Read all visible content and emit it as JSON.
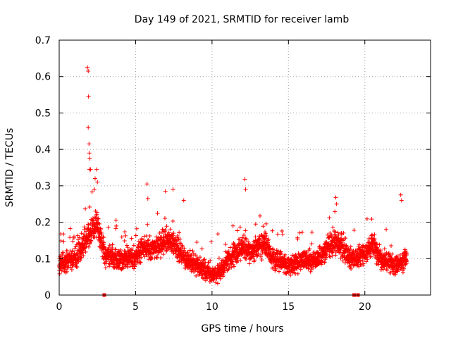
{
  "chart_data": {
    "type": "scatter",
    "title": "Day 149 of 2021, SRMTID for receiver lamb",
    "xlabel": "GPS time / hours",
    "ylabel": "SRMTID / TECUs",
    "xlim": [
      0,
      24.3
    ],
    "ylim": [
      0,
      0.7
    ],
    "xticks": [
      0,
      5,
      10,
      15,
      20
    ],
    "yticks": [
      0,
      0.1,
      0.2,
      0.3,
      0.4,
      0.5,
      0.6,
      0.7
    ],
    "xtick_labels": [
      "0",
      "5",
      "10",
      "15",
      "20"
    ],
    "ytick_labels": [
      "0",
      "0.1",
      "0.2",
      "0.3",
      "0.4",
      "0.5",
      "0.6",
      "0.7"
    ],
    "grid": true,
    "legend": "none",
    "marker": "plus",
    "series_color": "#ff0000",
    "generation": {
      "note": "Dense scatter of several thousand points; summarized by an hourly baseline envelope and peak events read from the figure",
      "x_start": 0.0,
      "x_end": 22.75,
      "x_step": 0.0075,
      "baseline": [
        [
          0.0,
          0.09
        ],
        [
          1.0,
          0.1
        ],
        [
          1.5,
          0.13
        ],
        [
          2.0,
          0.17
        ],
        [
          2.5,
          0.19
        ],
        [
          3.0,
          0.11
        ],
        [
          4.0,
          0.1
        ],
        [
          5.0,
          0.1
        ],
        [
          5.5,
          0.13
        ],
        [
          6.0,
          0.12
        ],
        [
          7.0,
          0.15
        ],
        [
          7.5,
          0.14
        ],
        [
          8.0,
          0.11
        ],
        [
          9.0,
          0.08
        ],
        [
          10.0,
          0.06
        ],
        [
          10.5,
          0.06
        ],
        [
          11.0,
          0.1
        ],
        [
          12.0,
          0.13
        ],
        [
          12.5,
          0.12
        ],
        [
          13.0,
          0.13
        ],
        [
          13.5,
          0.14
        ],
        [
          14.0,
          0.1
        ],
        [
          15.0,
          0.08
        ],
        [
          16.0,
          0.1
        ],
        [
          16.5,
          0.09
        ],
        [
          17.0,
          0.1
        ],
        [
          17.5,
          0.13
        ],
        [
          18.0,
          0.15
        ],
        [
          18.5,
          0.14
        ],
        [
          19.0,
          0.1
        ],
        [
          20.0,
          0.11
        ],
        [
          20.5,
          0.14
        ],
        [
          21.0,
          0.1
        ],
        [
          22.0,
          0.08
        ],
        [
          22.75,
          0.1
        ]
      ],
      "spread": 0.045,
      "peaks": [
        [
          1.85,
          0.625
        ],
        [
          1.9,
          0.615
        ],
        [
          1.92,
          0.545
        ],
        [
          1.9,
          0.46
        ],
        [
          1.95,
          0.415
        ],
        [
          1.97,
          0.39
        ],
        [
          2.0,
          0.375
        ],
        [
          1.98,
          0.345
        ],
        [
          2.05,
          0.345
        ],
        [
          2.35,
          0.32
        ],
        [
          2.45,
          0.345
        ],
        [
          2.3,
          0.29
        ],
        [
          5.75,
          0.305
        ],
        [
          5.8,
          0.265
        ],
        [
          6.95,
          0.285
        ],
        [
          7.45,
          0.29
        ],
        [
          12.15,
          0.318
        ],
        [
          12.2,
          0.29
        ],
        [
          18.1,
          0.268
        ],
        [
          22.35,
          0.275
        ],
        [
          22.4,
          0.26
        ],
        [
          8.15,
          0.26
        ],
        [
          2.5,
          0.31
        ],
        [
          18.15,
          0.25
        ]
      ],
      "zeros": [
        2.95,
        19.3,
        19.55
      ]
    }
  }
}
